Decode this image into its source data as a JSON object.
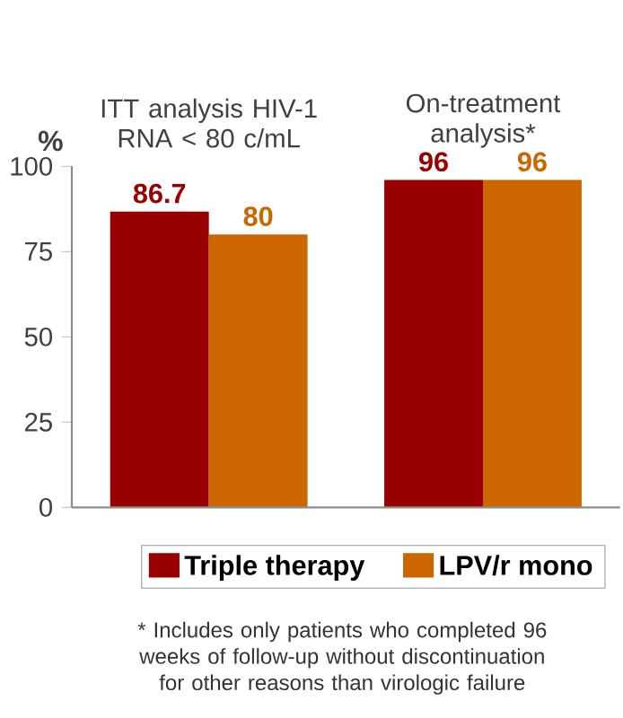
{
  "chart_data": {
    "type": "bar",
    "categories": [
      "ITT analysis HIV-1 RNA < 80 c/mL",
      "On-treatment analysis*"
    ],
    "ylabel": "%",
    "series": [
      {
        "name": "Triple therapy",
        "color": "#990000",
        "values": [
          86.7,
          96
        ]
      },
      {
        "name": "LPV/r mono",
        "color": "#cc6600",
        "values": [
          80,
          96
        ]
      }
    ],
    "ylim": [
      0,
      100
    ],
    "yticks": [
      0,
      25,
      50,
      75,
      100
    ],
    "data_labels": true,
    "legend": "bottom",
    "grid": false,
    "annotations": [
      "* Includes only patients who completed 96 weeks of follow-up without discontinuation for other reasons than virologic failure"
    ]
  }
}
